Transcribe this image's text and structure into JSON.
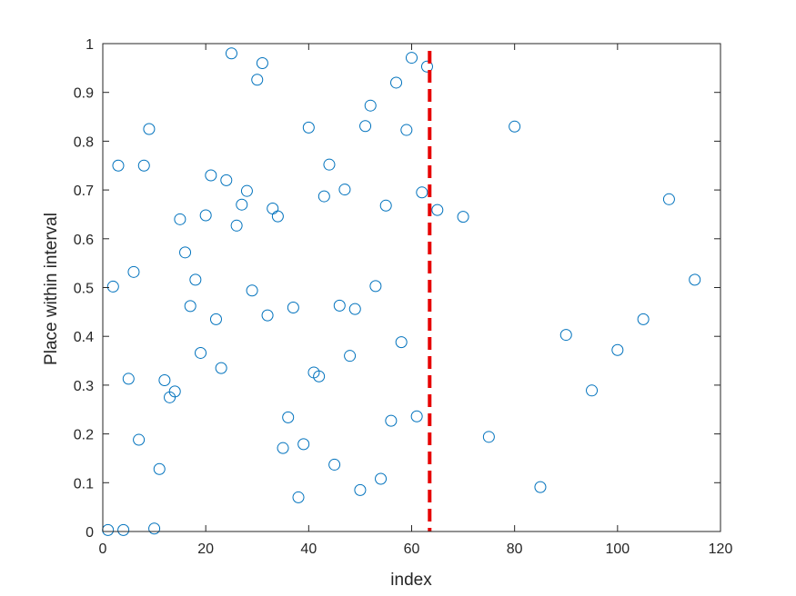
{
  "chart_data": {
    "type": "scatter",
    "xlabel": "index",
    "ylabel": "Place within interval",
    "xlim": [
      0,
      120
    ],
    "ylim": [
      0,
      1
    ],
    "xticks": [
      0,
      20,
      40,
      60,
      80,
      100,
      120
    ],
    "yticks": [
      0,
      0.1,
      0.2,
      0.3,
      0.4,
      0.5,
      0.6,
      0.7,
      0.8,
      0.9,
      1
    ],
    "xtick_labels": [
      "0",
      "20",
      "40",
      "60",
      "80",
      "100",
      "120"
    ],
    "ytick_labels": [
      "0",
      "0.1",
      "0.2",
      "0.3",
      "0.4",
      "0.5",
      "0.6",
      "0.7",
      "0.8",
      "0.9",
      "1"
    ],
    "grid": false,
    "marker_color": "#0072BD",
    "vline": {
      "x": 63.5,
      "color": "#E60000",
      "style": "dashed"
    },
    "points": [
      [
        1,
        0.003
      ],
      [
        2,
        0.502
      ],
      [
        3,
        0.75
      ],
      [
        4,
        0.003
      ],
      [
        5,
        0.313
      ],
      [
        6,
        0.532
      ],
      [
        7,
        0.188
      ],
      [
        8,
        0.75
      ],
      [
        9,
        0.825
      ],
      [
        10,
        0.006
      ],
      [
        11,
        0.128
      ],
      [
        12,
        0.31
      ],
      [
        13,
        0.275
      ],
      [
        14,
        0.287
      ],
      [
        15,
        0.64
      ],
      [
        16,
        0.572
      ],
      [
        17,
        0.462
      ],
      [
        18,
        0.516
      ],
      [
        19,
        0.366
      ],
      [
        20,
        0.648
      ],
      [
        21,
        0.73
      ],
      [
        22,
        0.435
      ],
      [
        23,
        0.335
      ],
      [
        24,
        0.72
      ],
      [
        25,
        0.98
      ],
      [
        26,
        0.627
      ],
      [
        27,
        0.67
      ],
      [
        28,
        0.698
      ],
      [
        29,
        0.494
      ],
      [
        30,
        0.926
      ],
      [
        31,
        0.96
      ],
      [
        32,
        0.443
      ],
      [
        33,
        0.662
      ],
      [
        34,
        0.646
      ],
      [
        35,
        0.171
      ],
      [
        36,
        0.234
      ],
      [
        37,
        0.459
      ],
      [
        38,
        0.07
      ],
      [
        39,
        0.179
      ],
      [
        40,
        0.828
      ],
      [
        41,
        0.326
      ],
      [
        42,
        0.318
      ],
      [
        43,
        0.687
      ],
      [
        44,
        0.752
      ],
      [
        45,
        0.137
      ],
      [
        46,
        0.463
      ],
      [
        47,
        0.701
      ],
      [
        48,
        0.36
      ],
      [
        49,
        0.456
      ],
      [
        50,
        0.085
      ],
      [
        51,
        0.831
      ],
      [
        52,
        0.873
      ],
      [
        53,
        0.503
      ],
      [
        54,
        0.108
      ],
      [
        55,
        0.668
      ],
      [
        56,
        0.227
      ],
      [
        57,
        0.92
      ],
      [
        58,
        0.388
      ],
      [
        59,
        0.823
      ],
      [
        60,
        0.971
      ],
      [
        61,
        0.236
      ],
      [
        62,
        0.695
      ],
      [
        63,
        0.953
      ],
      [
        65,
        0.659
      ],
      [
        70,
        0.645
      ],
      [
        75,
        0.194
      ],
      [
        80,
        0.83
      ],
      [
        85,
        0.091
      ],
      [
        90,
        0.403
      ],
      [
        95,
        0.289
      ],
      [
        100,
        0.372
      ],
      [
        105,
        0.435
      ],
      [
        110,
        0.681
      ],
      [
        115,
        0.516
      ]
    ]
  }
}
